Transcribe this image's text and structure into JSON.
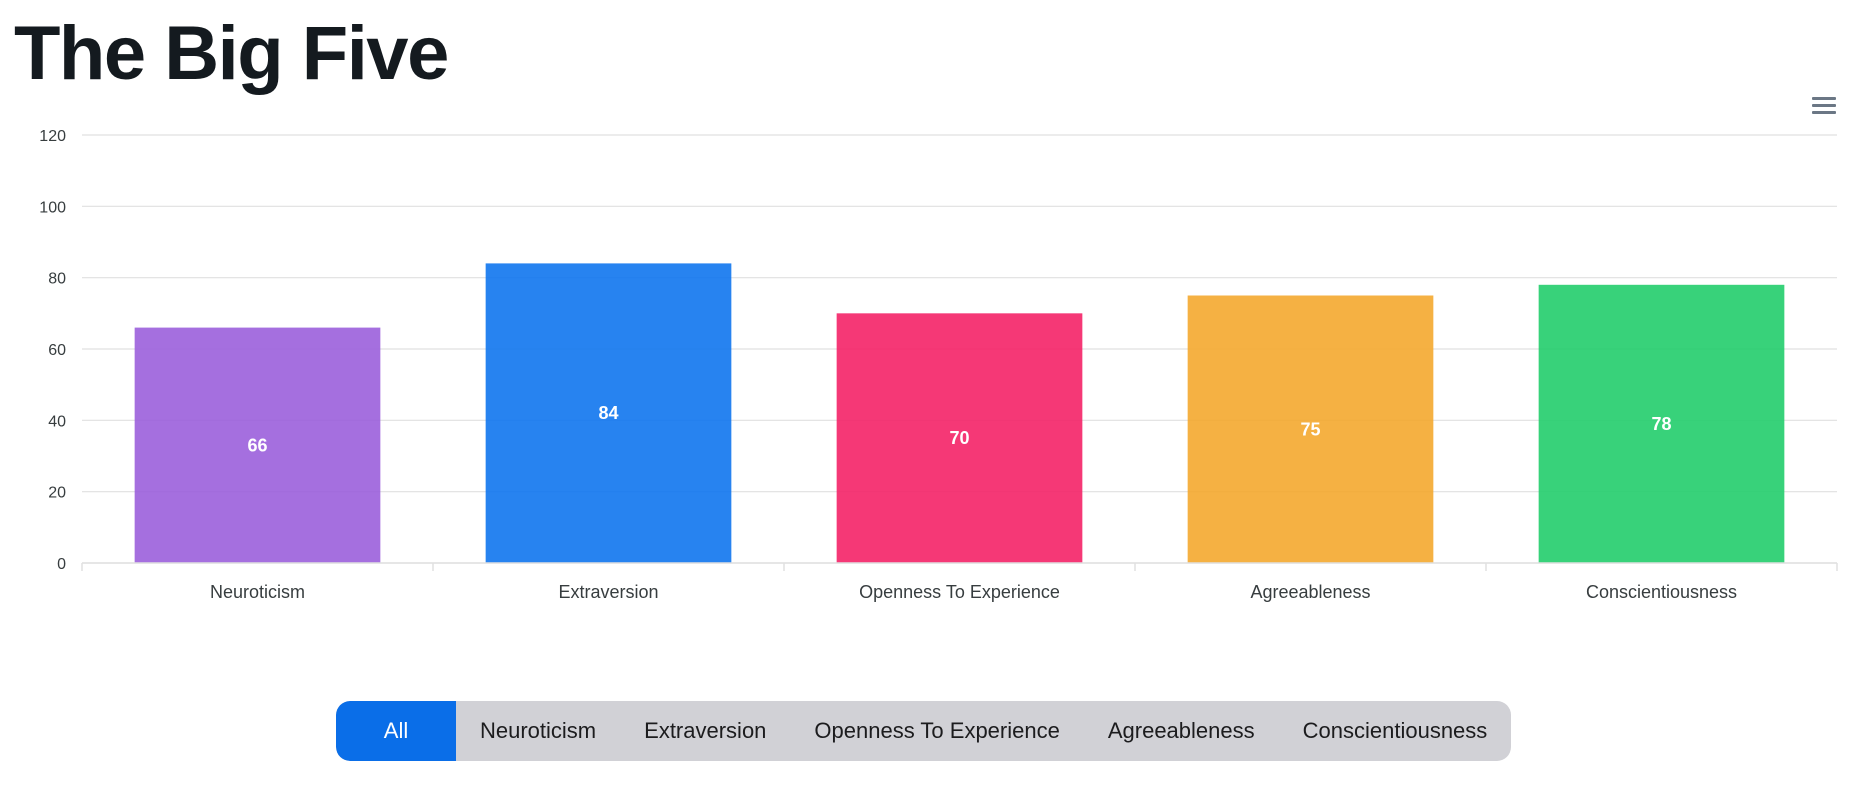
{
  "page": {
    "title": "The Big Five"
  },
  "toolbar": {
    "menu_icon": "hamburger-menu-icon"
  },
  "chart_data": {
    "type": "bar",
    "title": "",
    "xlabel": "",
    "ylabel": "",
    "categories": [
      "Neuroticism",
      "Extraversion",
      "Openness To Experience",
      "Agreeableness",
      "Conscientiousness"
    ],
    "values": [
      66,
      84,
      70,
      75,
      78
    ],
    "colors": [
      "#9b5fdb",
      "#0f76ee",
      "#f42267",
      "#f4a92f",
      "#22cd6c"
    ],
    "ylim": [
      0,
      120
    ],
    "yticks": [
      0,
      20,
      40,
      60,
      80,
      100,
      120
    ],
    "data_labels": true,
    "grid": true,
    "legend": "none"
  },
  "filters": {
    "active": "All",
    "options": [
      "All",
      "Neuroticism",
      "Extraversion",
      "Openness To Experience",
      "Agreeableness",
      "Conscientiousness"
    ]
  }
}
